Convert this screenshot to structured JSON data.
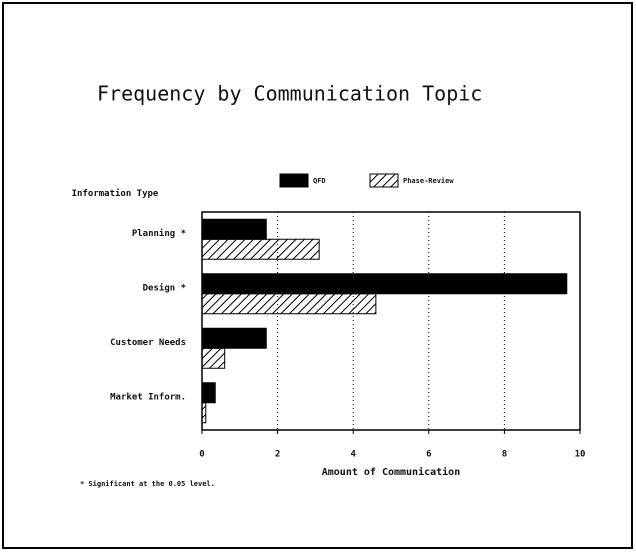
{
  "chart_data": {
    "type": "barh",
    "title": "Frequency by Communication Topic",
    "x_label": "Amount of Communication",
    "y_label": "Information Type",
    "footnote": "* Significant at the 0.05 level.",
    "categories": [
      "Planning *",
      "Design *",
      "Customer Needs",
      "Market Inform."
    ],
    "series": [
      {
        "name": "QFD",
        "color": "#000000",
        "hatch": false,
        "values": [
          1.7,
          9.65,
          1.7,
          0.35
        ]
      },
      {
        "name": "Phase-Review",
        "color": "#000000",
        "hatch": true,
        "values": [
          3.1,
          4.6,
          0.6,
          0.1
        ]
      }
    ],
    "xlim": [
      0,
      10
    ],
    "xticks": [
      0,
      2,
      4,
      6,
      8,
      10
    ],
    "grid": true
  }
}
